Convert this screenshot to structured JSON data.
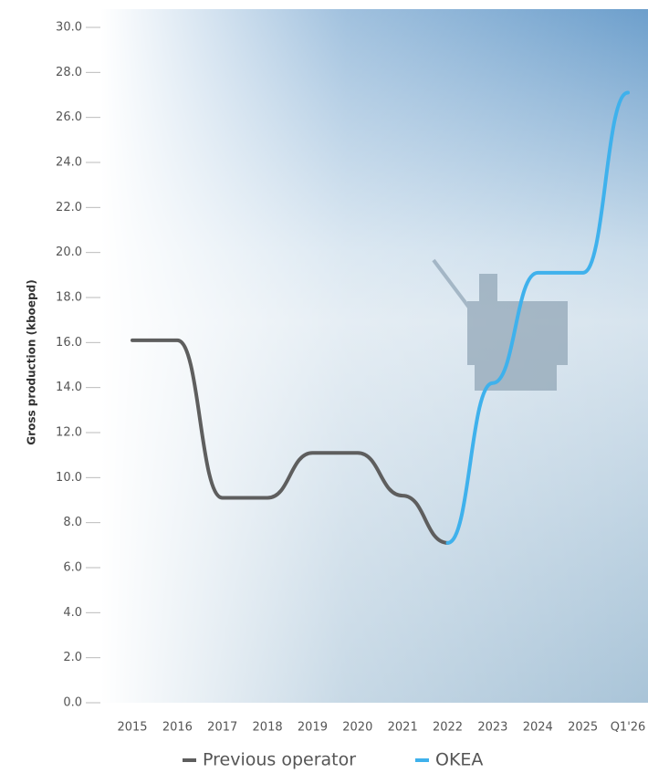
{
  "chart_data": {
    "type": "line",
    "y_label": "Gross production (kboepd)",
    "categories": [
      "2015",
      "2016",
      "2017",
      "2018",
      "2019",
      "2020",
      "2021",
      "2022",
      "2023",
      "2024",
      "2025",
      "Q1'26"
    ],
    "series": [
      {
        "name": "Previous operator",
        "color": "#5e5e5e",
        "values": [
          16.1,
          16.1,
          9.1,
          9.1,
          11.1,
          11.1,
          9.2,
          7.1,
          null,
          null,
          null,
          null
        ]
      },
      {
        "name": "OKEA",
        "color": "#3fb1ec",
        "values": [
          null,
          null,
          null,
          null,
          null,
          null,
          null,
          7.1,
          14.2,
          19.1,
          19.1,
          27.1
        ]
      }
    ],
    "ylim": [
      0,
      30
    ],
    "yticks": [
      {
        "value": 0,
        "label": "0.0"
      },
      {
        "value": 2,
        "label": "2.0"
      },
      {
        "value": 4,
        "label": "4.0"
      },
      {
        "value": 6,
        "label": "6.0"
      },
      {
        "value": 8,
        "label": "8.0"
      },
      {
        "value": 10,
        "label": "10.0"
      },
      {
        "value": 12,
        "label": "12.0"
      },
      {
        "value": 14,
        "label": "14.0"
      },
      {
        "value": 16,
        "label": "16.0"
      },
      {
        "value": 18,
        "label": "18.0"
      },
      {
        "value": 20,
        "label": "20.0"
      },
      {
        "value": 22,
        "label": "22.0"
      },
      {
        "value": 24,
        "label": "24.0"
      },
      {
        "value": 26,
        "label": "26.0"
      },
      {
        "value": 28,
        "label": "28.0"
      },
      {
        "value": 30,
        "label": "30.0"
      }
    ]
  }
}
